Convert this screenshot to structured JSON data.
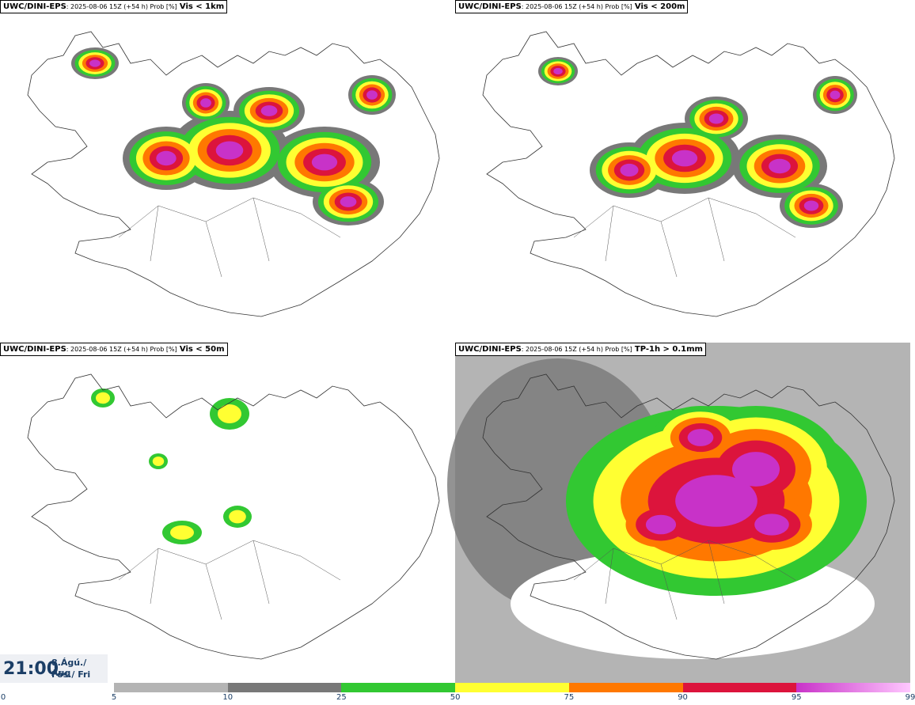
{
  "panels": [
    {
      "model": "UWC/DINI-EPS",
      "meta": ": 2025-08-06 15Z (+54 h) Prob [%]",
      "threshold": "Vis < 1km",
      "intensity": "high"
    },
    {
      "model": "UWC/DINI-EPS",
      "meta": ": 2025-08-06 15Z (+54 h) Prob [%]",
      "threshold": "Vis < 200m",
      "intensity": "medium"
    },
    {
      "model": "UWC/DINI-EPS",
      "meta": ": 2025-08-06 15Z (+54 h) Prob [%]",
      "threshold": "Vis < 50m",
      "intensity": "low"
    },
    {
      "model": "UWC/DINI-EPS",
      "meta": ": 2025-08-06 15Z (+54 h) Prob [%]",
      "threshold": "TP-1h > 0.1mm",
      "intensity": "precip"
    }
  ],
  "valid_time": {
    "time": "21:00",
    "date_line1": "8.Ágú./ Aug",
    "date_line2": "Fös./ Fri"
  },
  "colorbar": {
    "levels": [
      0,
      5,
      10,
      25,
      50,
      75,
      90,
      95,
      99
    ],
    "labels": [
      "0",
      "5",
      "10",
      "25",
      "50",
      "75",
      "90",
      "95",
      "99"
    ],
    "colors": [
      "#ffffff",
      "#b4b4b4",
      "#787878",
      "#32c832",
      "#ffff32",
      "#ff7800",
      "#dc143c",
      "#c832c8"
    ],
    "last_color_end": "#ffc8ff"
  }
}
